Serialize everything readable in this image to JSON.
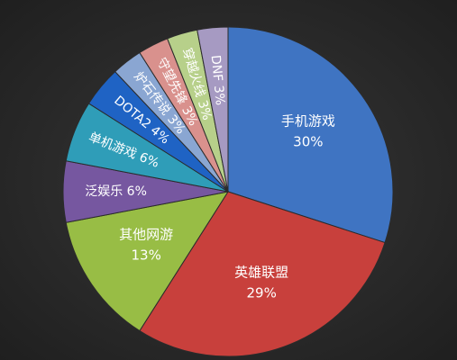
{
  "chart_data": {
    "type": "pie",
    "title": "",
    "start_angle_deg": 90,
    "direction": "clockwise",
    "legend": "none",
    "slices": [
      {
        "name": "手机游戏",
        "value": 30,
        "label": "30%",
        "color": "#3f74c2"
      },
      {
        "name": "英雄联盟",
        "value": 29,
        "label": "29%",
        "color": "#c8403c"
      },
      {
        "name": "其他网游",
        "value": 13,
        "label": "13%",
        "color": "#98bd45"
      },
      {
        "name": "泛娱乐",
        "value": 6,
        "label": "6%",
        "color": "#7657a0"
      },
      {
        "name": "单机游戏",
        "value": 6,
        "label": "6%",
        "color": "#2f9db8"
      },
      {
        "name": "DOTA2",
        "value": 4,
        "label": "4%",
        "color": "#1f63c4"
      },
      {
        "name": "炉石传说",
        "value": 3,
        "label": "3%",
        "color": "#8aa6d2"
      },
      {
        "name": "守望先锋",
        "value": 3,
        "label": "3%",
        "color": "#d9918d"
      },
      {
        "name": "穿越火线",
        "value": 3,
        "label": "3%",
        "color": "#b7d08a"
      },
      {
        "name": "DNF",
        "value": 3,
        "label": "3%",
        "color": "#a69ac2"
      }
    ]
  }
}
